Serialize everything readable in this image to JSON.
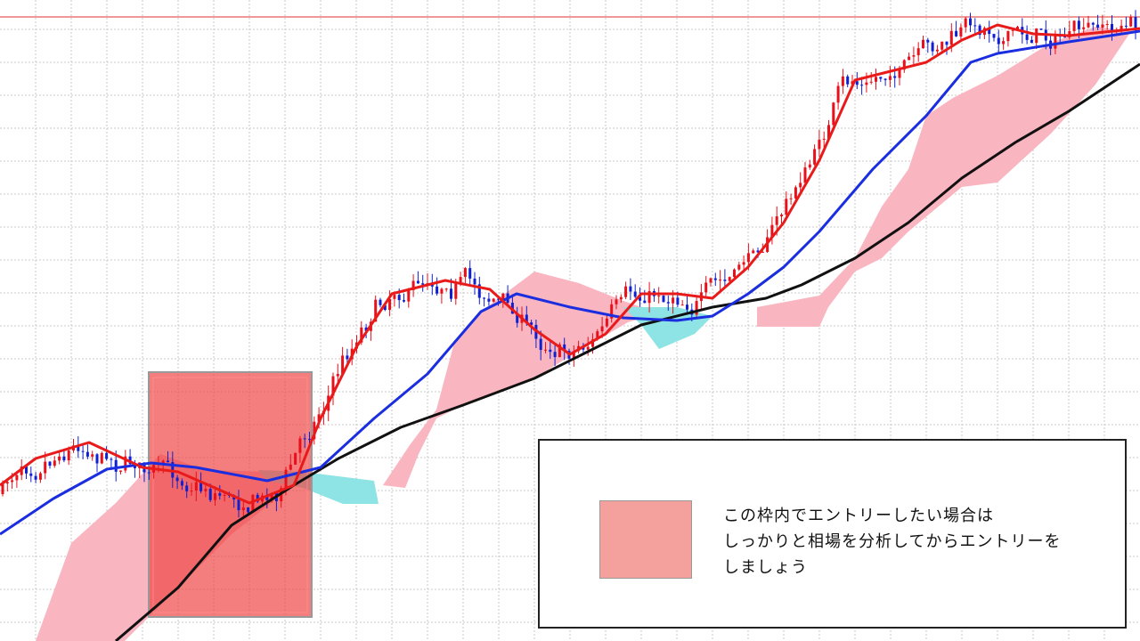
{
  "annotation": {
    "lines": [
      "この枠内でエントリーしたい場合は",
      "しっかりと相場を分析してからエントリーを",
      "しましょう"
    ]
  }
}
